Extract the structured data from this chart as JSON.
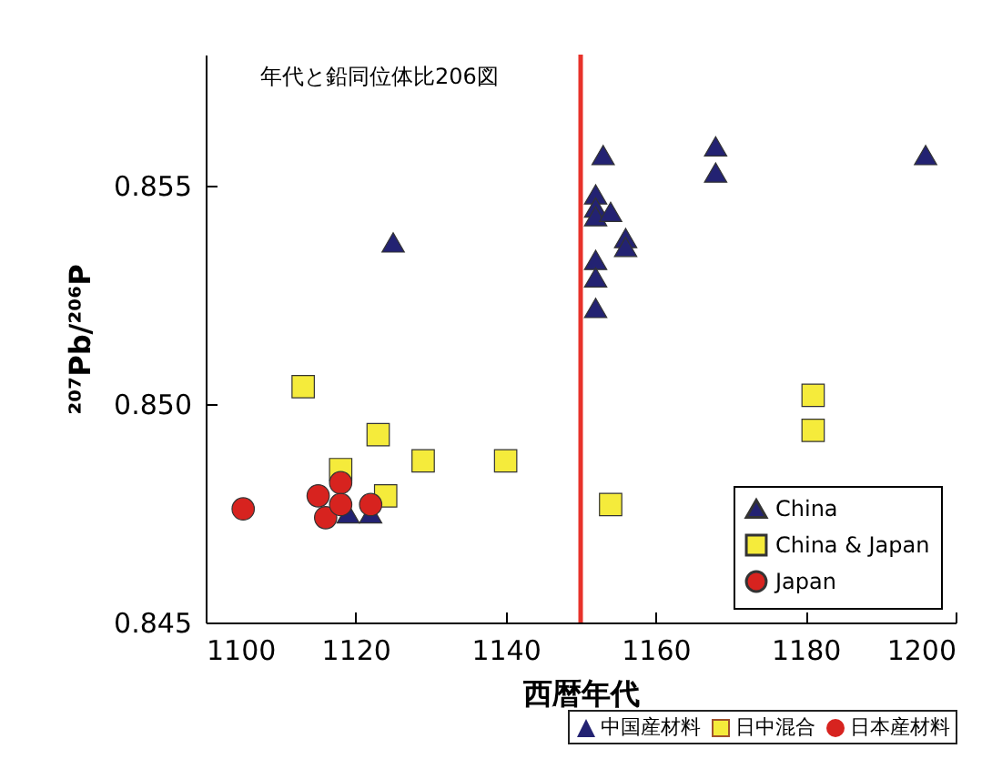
{
  "chart_data": {
    "type": "scatter",
    "title": "年代と鉛同位体比206図",
    "xlabel": "西暦年代",
    "ylabel": "²⁰⁷Pb/²⁰⁶P",
    "xlim": [
      1100,
      1200
    ],
    "xticks": [
      1100,
      1120,
      1140,
      1160,
      1180,
      1200
    ],
    "ylim": [
      0.845,
      0.858
    ],
    "yticks": [
      0.845,
      {
        "value": 0.85,
        "label": "0.850"
      },
      0.855
    ],
    "grid": false,
    "legend": "bottom right",
    "ref_lines": [
      {
        "axis": "x",
        "value": 1150,
        "color": "#e8322a"
      }
    ],
    "annotations": [
      "中国産材料",
      "日中混合",
      "日本産材料"
    ],
    "series": [
      {
        "name": "China",
        "color": "#232272",
        "marker": "triangle",
        "x": [
          1125,
          1153,
          1168,
          1168,
          1196,
          1152,
          1152,
          1152,
          1154,
          1156,
          1156,
          1152,
          1152,
          1152,
          1119,
          1122
        ],
        "values": [
          0.8537,
          0.8557,
          0.8559,
          0.8553,
          0.8557,
          0.8548,
          0.8545,
          0.8543,
          0.8544,
          0.8538,
          0.8536,
          0.8533,
          0.8529,
          0.8522,
          0.8475,
          0.8475
        ]
      },
      {
        "name": "China & Japan",
        "color": "#f5eb3b",
        "marker": "square",
        "x": [
          1113,
          1123,
          1129,
          1140,
          1118,
          1124,
          1181,
          1181,
          1154
        ],
        "values": [
          0.8504,
          0.8493,
          0.8487,
          0.8487,
          0.8485,
          0.8479,
          0.8502,
          0.8494,
          0.8477
        ]
      },
      {
        "name": "Japan",
        "color": "#d7231f",
        "marker": "circle",
        "x": [
          1105,
          1115,
          1118,
          1116,
          1122,
          1118
        ],
        "values": [
          0.8476,
          0.8479,
          0.8482,
          0.8474,
          0.8477,
          0.8477
        ]
      }
    ]
  }
}
